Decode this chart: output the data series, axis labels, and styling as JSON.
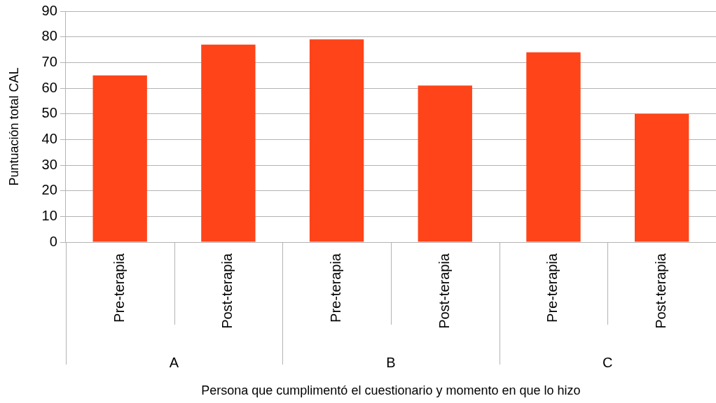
{
  "chart_data": {
    "type": "bar",
    "xlabel": "Persona que cumplimentó el cuestionario y momento en que lo hizo",
    "ylabel": "Puntuación total CAL",
    "categories": [
      "Pre-terapia",
      "Post-terapia",
      "Pre-terapia",
      "Post-terapia",
      "Pre-terapia",
      "Post-terapia"
    ],
    "values": [
      65,
      77,
      79,
      61,
      74,
      50
    ],
    "color": "#ff4419",
    "annotations": [
      "A",
      "B",
      "C"
    ],
    "ylim": [
      0,
      90
    ],
    "yticks": [
      0,
      10,
      20,
      30,
      40,
      50,
      60,
      70,
      80,
      90
    ],
    "grid": "y",
    "legend": false
  }
}
